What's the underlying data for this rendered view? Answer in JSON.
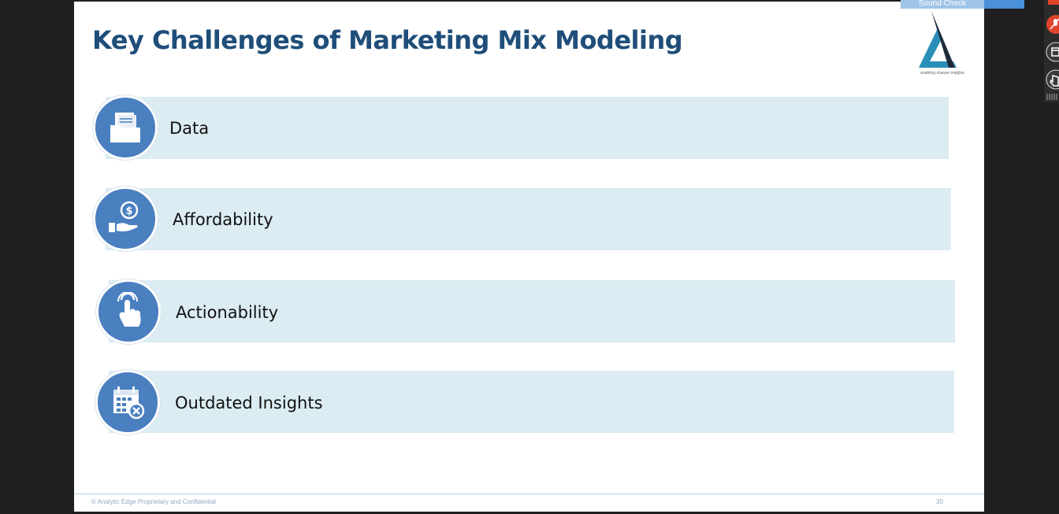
{
  "slide": {
    "title": "Key Challenges of Marketing Mix Modeling",
    "logo_tagline": "enabling sharper insights",
    "footer_text": "© Analytic Edge Proprietary and Confidential",
    "page_number": "30"
  },
  "challenges": [
    {
      "label": "Data",
      "icon": "folder-documents-icon"
    },
    {
      "label": "Affordability",
      "icon": "hand-coin-icon"
    },
    {
      "label": "Actionability",
      "icon": "pointer-tap-icon"
    },
    {
      "label": "Outdated Insights",
      "icon": "calendar-cancel-icon"
    }
  ],
  "meeting": {
    "sound_check_label": "Sound Check"
  },
  "colors": {
    "title": "#1f4e79",
    "bar": "#dbecf2",
    "icon_circle": "#4a7fc0",
    "mic_muted": "#e0442b"
  }
}
